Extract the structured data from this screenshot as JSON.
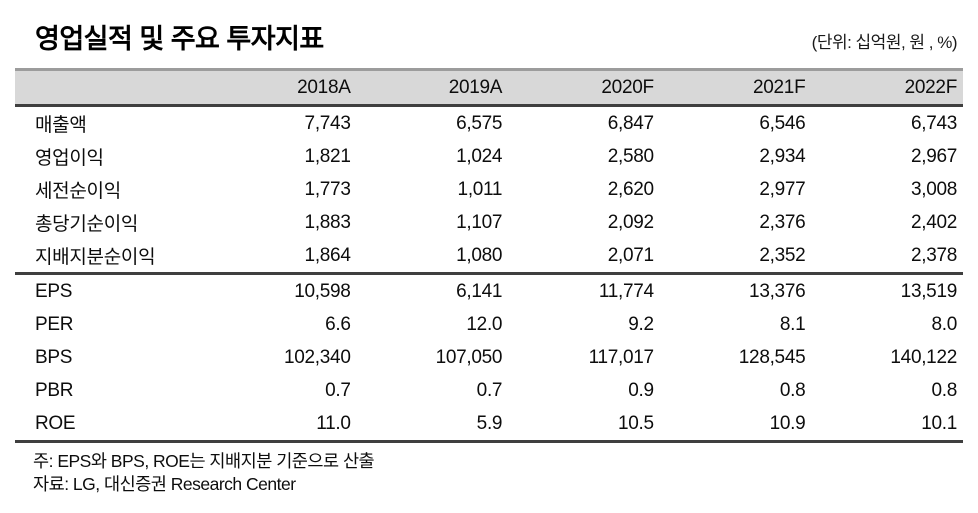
{
  "title": "영업실적 및 주요 투자지표",
  "unit_note": "(단위: 십억원, 원 , %)",
  "table": {
    "columns": [
      "2018A",
      "2019A",
      "2020F",
      "2021F",
      "2022F"
    ],
    "rows": [
      {
        "label": "매출액",
        "values": [
          "7,743",
          "6,575",
          "6,847",
          "6,546",
          "6,743"
        ]
      },
      {
        "label": "영업이익",
        "values": [
          "1,821",
          "1,024",
          "2,580",
          "2,934",
          "2,967"
        ]
      },
      {
        "label": "세전순이익",
        "values": [
          "1,773",
          "1,011",
          "2,620",
          "2,977",
          "3,008"
        ]
      },
      {
        "label": "총당기순이익",
        "values": [
          "1,883",
          "1,107",
          "2,092",
          "2,376",
          "2,402"
        ]
      },
      {
        "label": "지배지분순이익",
        "values": [
          "1,864",
          "1,080",
          "2,071",
          "2,352",
          "2,378"
        ]
      },
      {
        "label": "EPS",
        "values": [
          "10,598",
          "6,141",
          "11,774",
          "13,376",
          "13,519"
        ]
      },
      {
        "label": "PER",
        "values": [
          "6.6",
          "12.0",
          "9.2",
          "8.1",
          "8.0"
        ]
      },
      {
        "label": "BPS",
        "values": [
          "102,340",
          "107,050",
          "117,017",
          "128,545",
          "140,122"
        ]
      },
      {
        "label": "PBR",
        "values": [
          "0.7",
          "0.7",
          "0.9",
          "0.8",
          "0.8"
        ]
      },
      {
        "label": "ROE",
        "values": [
          "11.0",
          "5.9",
          "10.5",
          "10.9",
          "10.1"
        ]
      }
    ]
  },
  "footnotes": {
    "note": "주: EPS와 BPS, ROE는 지배지분 기준으로 산출",
    "source": "자료: LG, 대신증권 Research Center"
  },
  "colors": {
    "header_bg": "#d8d8d8",
    "rule_dark": "#3f3f3f",
    "rule_gray": "#9c9c9c",
    "text": "#0d0d0d"
  }
}
